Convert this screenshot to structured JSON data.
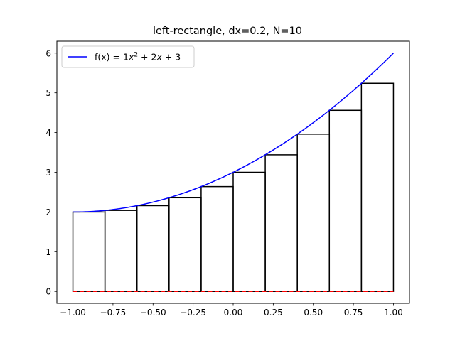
{
  "chart_data": {
    "type": "line",
    "title": "left-rectangle, dx=0.2, N=10",
    "xlabel": "",
    "ylabel": "",
    "xlim": [
      -1.1,
      1.1
    ],
    "ylim": [
      -0.3,
      6.3
    ],
    "x_ticks": [
      -1.0,
      -0.75,
      -0.5,
      -0.25,
      0.0,
      0.25,
      0.5,
      0.75,
      1.0
    ],
    "x_tick_labels": [
      "−1.00",
      "−0.75",
      "−0.50",
      "−0.25",
      "0.00",
      "0.25",
      "0.50",
      "0.75",
      "1.00"
    ],
    "y_ticks": [
      0,
      1,
      2,
      3,
      4,
      5,
      6
    ],
    "y_tick_labels": [
      "0",
      "1",
      "2",
      "3",
      "4",
      "5",
      "6"
    ],
    "grid": false,
    "legend": {
      "placement": "top-left",
      "entries": [
        {
          "label_prefix": "f(x) = 1",
          "label_var": "x",
          "label_sup": "2",
          "label_suffix": " + 2",
          "label_var2": "x",
          "label_end": " + 3",
          "color": "#0000ff"
        }
      ]
    },
    "series": [
      {
        "name": "f(x) = 1x^2 + 2x + 3",
        "kind": "curve",
        "color": "#0000ff",
        "coefficients": [
          1,
          2,
          3
        ],
        "x_range": [
          -1.0,
          1.0
        ]
      }
    ],
    "rectangles": {
      "color": "#000000",
      "dx": 0.2,
      "x_left": [
        -1.0,
        -0.8,
        -0.6,
        -0.4,
        -0.2,
        0.0,
        0.2,
        0.4,
        0.6,
        0.8
      ],
      "heights": [
        2.0,
        2.04,
        2.16,
        2.36,
        2.64,
        3.0,
        3.44,
        3.96,
        4.56,
        5.24
      ]
    },
    "baseline": {
      "y": 0,
      "x_range": [
        -1.0,
        1.0
      ],
      "color": "#ff0000",
      "style": "dashed"
    }
  }
}
